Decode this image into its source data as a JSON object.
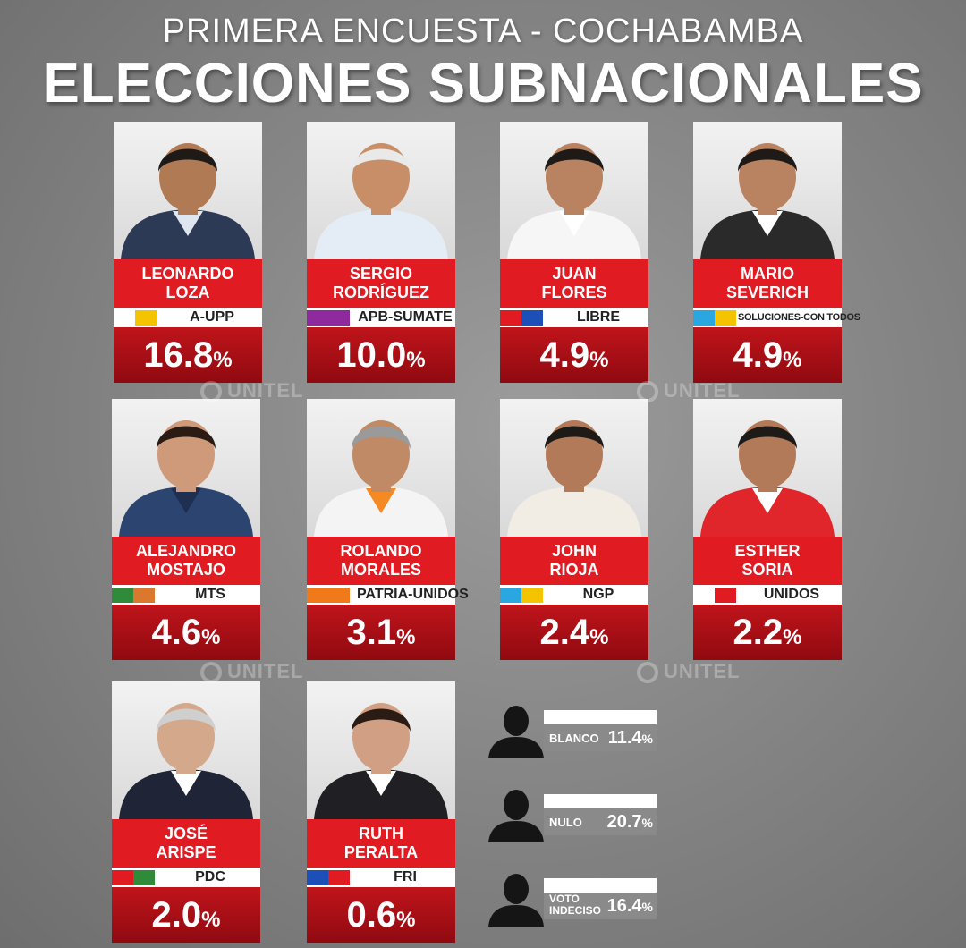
{
  "header": {
    "subtitle": "PRIMERA ENCUESTA - COCHABAMBA",
    "title": "ELECCIONES SUBNACIONALES"
  },
  "watermark": "UNITEL",
  "chart_data": {
    "type": "bar",
    "title": "ELECCIONES SUBNACIONALES",
    "subtitle": "PRIMERA ENCUESTA - COCHABAMBA",
    "unit": "%",
    "candidates": [
      {
        "first": "LEONARDO",
        "last": "LOZA",
        "party": "A-UPP",
        "value": "16.8",
        "colors": [
          "#ffffff",
          "#f4c400"
        ]
      },
      {
        "first": "SERGIO",
        "last": "RODRÍGUEZ",
        "party": "APB-SUMATE",
        "value": "10.0",
        "colors": [
          "#8e2a9e",
          "#8e2a9e"
        ]
      },
      {
        "first": "JUAN",
        "last": "FLORES",
        "party": "LIBRE",
        "value": "4.9",
        "colors": [
          "#e01b22",
          "#1d4fb8"
        ]
      },
      {
        "first": "MARIO",
        "last": "SEVERICH",
        "party": "SOLUCIONES-CON TODOS",
        "value": "4.9",
        "colors": [
          "#2aa7e0",
          "#f4c400"
        ]
      },
      {
        "first": "ALEJANDRO",
        "last": "MOSTAJO",
        "party": "MTS",
        "value": "4.6",
        "colors": [
          "#2f8a3a",
          "#d9782e"
        ]
      },
      {
        "first": "ROLANDO",
        "last": "MORALES",
        "party": "PATRIA-UNIDOS",
        "value": "3.1",
        "colors": [
          "#f07a1a",
          "#f07a1a"
        ]
      },
      {
        "first": "JOHN",
        "last": "RIOJA",
        "party": "NGP",
        "value": "2.4",
        "colors": [
          "#2aa7e0",
          "#f4c400"
        ]
      },
      {
        "first": "ESTHER",
        "last": "SORIA",
        "party": "UNIDOS",
        "value": "2.2",
        "colors": [
          "#ffffff",
          "#e01b22"
        ]
      },
      {
        "first": "JOSÉ",
        "last": "ARISPE",
        "party": "PDC",
        "value": "2.0",
        "colors": [
          "#e01b22",
          "#2f8a3a"
        ]
      },
      {
        "first": "RUTH",
        "last": "PERALTA",
        "party": "FRI",
        "value": "0.6",
        "colors": [
          "#1d4fb8",
          "#e01b22"
        ]
      }
    ],
    "others": [
      {
        "label": "BLANCO",
        "value": "11.4"
      },
      {
        "label": "NULO",
        "value": "20.7"
      },
      {
        "label": "VOTO INDECISO",
        "label_line1": "VOTO",
        "label_line2": "INDECISO",
        "value": "16.4"
      }
    ]
  },
  "photo_palette": [
    {
      "skin": "#b07a55",
      "hair": "#1e1a18",
      "shirt": "#2c3a55",
      "collar": "#dfe6ef"
    },
    {
      "skin": "#c88e68",
      "hair": "#e9e9e9",
      "shirt": "#e4edf6",
      "collar": "#e4edf6"
    },
    {
      "skin": "#b98260",
      "hair": "#1e1a18",
      "shirt": "#f6f6f6",
      "collar": "#ffffff"
    },
    {
      "skin": "#b98260",
      "hair": "#1e1a18",
      "shirt": "#2a2a2a",
      "collar": "#ffffff"
    },
    {
      "skin": "#cf9a7a",
      "hair": "#2a1c14",
      "shirt": "#2c4470",
      "collar": "#1f2f52"
    },
    {
      "skin": "#c08a66",
      "hair": "#9a9a9a",
      "shirt": "#f4f4f4",
      "collar": "#f58a25"
    },
    {
      "skin": "#b27a58",
      "hair": "#1e1a18",
      "shirt": "#f1ede4",
      "collar": "#f1ede4"
    },
    {
      "skin": "#b27a58",
      "hair": "#1e1a18",
      "shirt": "#e0262a",
      "collar": "#ffffff"
    },
    {
      "skin": "#d4a88a",
      "hair": "#cfcfcf",
      "shirt": "#1f2436",
      "collar": "#ffffff"
    },
    {
      "skin": "#d1a084",
      "hair": "#2a1c14",
      "shirt": "#1f1f24",
      "collar": "#ffffff"
    }
  ]
}
